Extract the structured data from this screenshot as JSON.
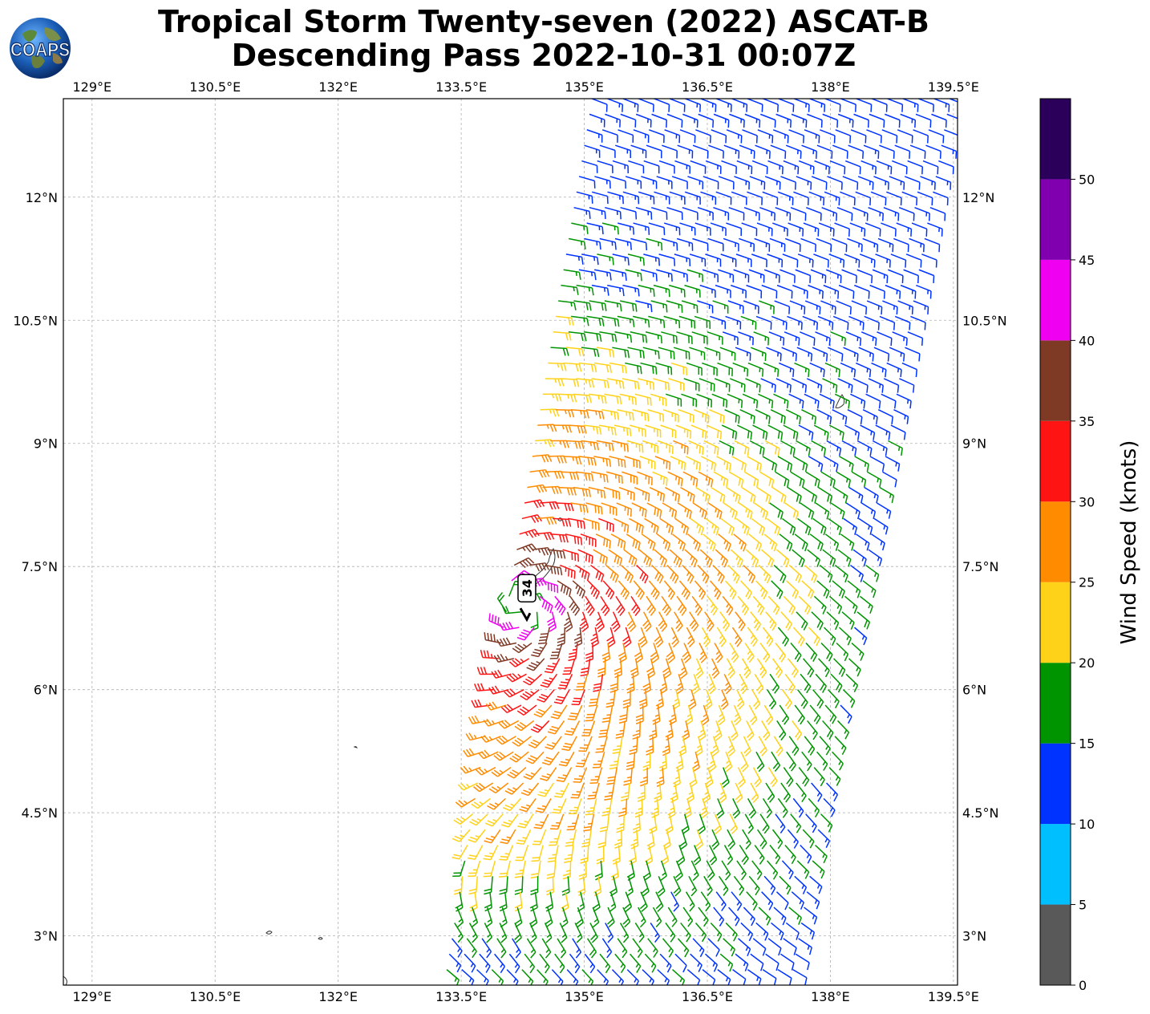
{
  "title": {
    "line1": "Tropical Storm Twenty-seven (2022) ASCAT-B",
    "line2": "Descending Pass 2022-10-31 00:07Z"
  },
  "logo": {
    "text": "COAPS",
    "icon": "earth-globe-icon"
  },
  "map": {
    "lon_range": [
      128.65,
      139.55
    ],
    "lat_range": [
      2.4,
      13.2
    ],
    "lon_ticks": [
      {
        "value": 129.0,
        "label": "129°E"
      },
      {
        "value": 130.5,
        "label": "130.5°E"
      },
      {
        "value": 132.0,
        "label": "132°E"
      },
      {
        "value": 133.5,
        "label": "133.5°E"
      },
      {
        "value": 135.0,
        "label": "135°E"
      },
      {
        "value": 136.5,
        "label": "136.5°E"
      },
      {
        "value": 138.0,
        "label": "138°E"
      },
      {
        "value": 139.5,
        "label": "139.5°E"
      }
    ],
    "lat_ticks": [
      {
        "value": 3.0,
        "label": "3°N"
      },
      {
        "value": 4.5,
        "label": "4.5°N"
      },
      {
        "value": 6.0,
        "label": "6°N"
      },
      {
        "value": 7.5,
        "label": "7.5°N"
      },
      {
        "value": 9.0,
        "label": "9°N"
      },
      {
        "value": 10.5,
        "label": "10.5°N"
      },
      {
        "value": 12.0,
        "label": "12°N"
      }
    ],
    "grid": true,
    "storm": {
      "label": "34",
      "lon": 134.3,
      "lat": 7.05
    },
    "swath": {
      "corners": [
        [
          135.0,
          13.2
        ],
        [
          139.55,
          13.2
        ],
        [
          137.6,
          2.4
        ],
        [
          133.2,
          2.4
        ]
      ],
      "center_lon": 134.25,
      "center_lat": 7.0
    }
  },
  "colorbar": {
    "label": "Wind Speed (knots)",
    "bins": [
      {
        "min": 0,
        "max": 5,
        "color": "#595959"
      },
      {
        "min": 5,
        "max": 10,
        "color": "#00bfff"
      },
      {
        "min": 10,
        "max": 15,
        "color": "#0033ff"
      },
      {
        "min": 15,
        "max": 20,
        "color": "#009400"
      },
      {
        "min": 20,
        "max": 25,
        "color": "#ffd21a"
      },
      {
        "min": 25,
        "max": 30,
        "color": "#ff8c00"
      },
      {
        "min": 30,
        "max": 35,
        "color": "#ff1414"
      },
      {
        "min": 35,
        "max": 40,
        "color": "#7f3a26"
      },
      {
        "min": 40,
        "max": 45,
        "color": "#f000f0"
      },
      {
        "min": 45,
        "max": 50,
        "color": "#8000b0"
      },
      {
        "min": 50,
        "max": 55,
        "color": "#2a005a"
      }
    ],
    "ticks": [
      "0",
      "5",
      "10",
      "15",
      "20",
      "25",
      "30",
      "35",
      "40",
      "45",
      "50"
    ]
  }
}
